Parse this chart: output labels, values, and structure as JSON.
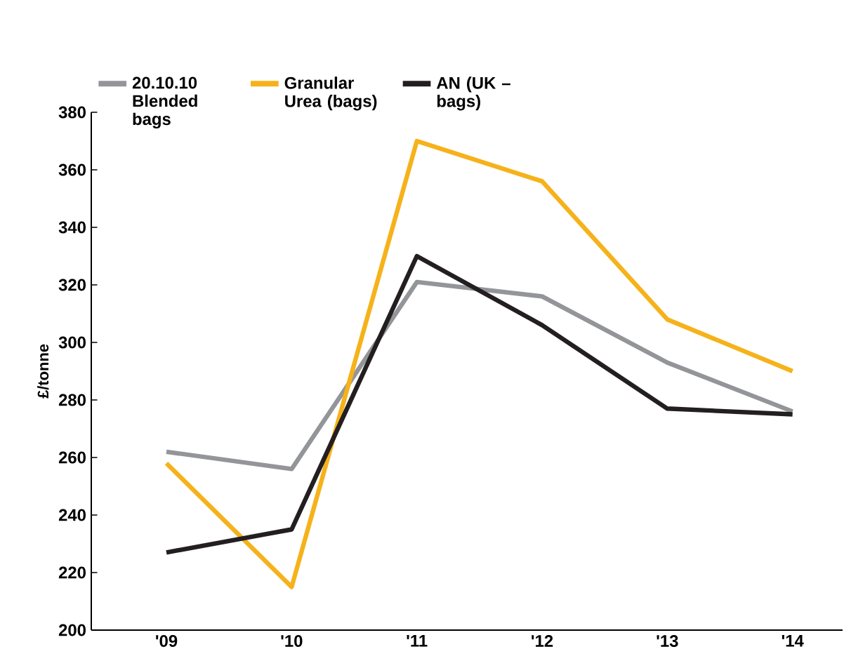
{
  "chart_data": {
    "type": "line",
    "ylabel": "£/tonne",
    "categories": [
      "'09",
      "'10",
      "'11",
      "'12",
      "'13",
      "'14"
    ],
    "series": [
      {
        "name": "20.10.10 Blended bags",
        "color": "#939598",
        "values": [
          262,
          256,
          321,
          316,
          293,
          276
        ]
      },
      {
        "name": "Granular Urea (bags)",
        "color": "#f6b21b",
        "values": [
          258,
          215,
          370,
          356,
          308,
          290
        ]
      },
      {
        "name": "AN (UK – bags)",
        "color": "#231f20",
        "values": [
          227,
          235,
          330,
          306,
          277,
          275
        ]
      }
    ],
    "ylim": [
      200,
      380
    ],
    "yticks": [
      200,
      220,
      240,
      260,
      280,
      300,
      320,
      340,
      360,
      380
    ],
    "legend": "top"
  }
}
